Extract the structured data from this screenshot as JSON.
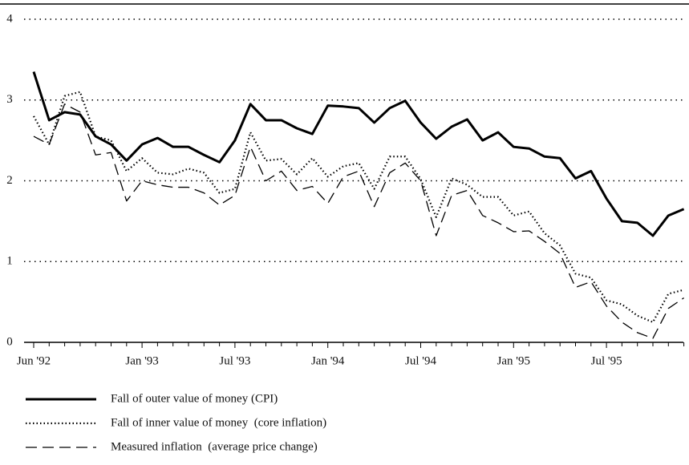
{
  "chart_data": {
    "type": "line",
    "categories": [
      "Jun '92",
      null,
      null,
      null,
      null,
      null,
      null,
      "Jan '93",
      null,
      null,
      null,
      null,
      null,
      "Jul '93",
      null,
      null,
      null,
      null,
      null,
      "Jan '94",
      null,
      null,
      null,
      null,
      null,
      "Jul '94",
      null,
      null,
      null,
      null,
      null,
      "Jan '95",
      null,
      null,
      null,
      null,
      null,
      "Jul '95",
      null,
      null,
      null,
      null,
      null
    ],
    "series": [
      {
        "name": "Fall of outer value of money (CPI)",
        "color": "#000000",
        "linestyle": "solid",
        "values": [
          3.35,
          2.75,
          2.85,
          2.82,
          2.55,
          2.45,
          2.25,
          2.45,
          2.53,
          2.42,
          2.42,
          2.32,
          2.23,
          2.5,
          2.95,
          2.75,
          2.75,
          2.65,
          2.58,
          2.93,
          2.92,
          2.9,
          2.72,
          2.9,
          2.99,
          2.72,
          2.52,
          2.67,
          2.76,
          2.5,
          2.6,
          2.42,
          2.4,
          2.3,
          2.28,
          2.03,
          2.12,
          1.78,
          1.5,
          1.48,
          1.32,
          1.57,
          1.65
        ]
      },
      {
        "name": "Fall of inner value of money  (core inflation)",
        "color": "#000000",
        "linestyle": "dotted",
        "values": [
          2.8,
          2.45,
          3.05,
          3.1,
          2.55,
          2.5,
          2.12,
          2.28,
          2.1,
          2.08,
          2.15,
          2.1,
          1.85,
          1.9,
          2.6,
          2.25,
          2.27,
          2.08,
          2.28,
          2.05,
          2.18,
          2.22,
          1.9,
          2.3,
          2.3,
          2.02,
          1.55,
          2.03,
          1.95,
          1.8,
          1.8,
          1.57,
          1.62,
          1.35,
          1.2,
          0.85,
          0.8,
          0.52,
          0.47,
          0.33,
          0.25,
          0.6,
          0.65
        ]
      },
      {
        "name": "Measured inflation  (average price change)",
        "color": "#000000",
        "linestyle": "dashed",
        "values": [
          2.55,
          2.45,
          2.95,
          2.85,
          2.32,
          2.35,
          1.75,
          2.0,
          1.95,
          1.92,
          1.92,
          1.85,
          1.7,
          1.82,
          2.42,
          2.0,
          2.12,
          1.88,
          1.93,
          1.72,
          2.05,
          2.12,
          1.68,
          2.1,
          2.22,
          2.0,
          1.32,
          1.82,
          1.88,
          1.57,
          1.48,
          1.37,
          1.38,
          1.25,
          1.1,
          0.68,
          0.75,
          0.45,
          0.25,
          0.12,
          0.05,
          0.42,
          0.55
        ]
      }
    ],
    "ylim": [
      0,
      4
    ],
    "yticks": [
      0,
      1,
      2,
      3,
      4
    ],
    "grid": true,
    "legend": "bottom"
  }
}
